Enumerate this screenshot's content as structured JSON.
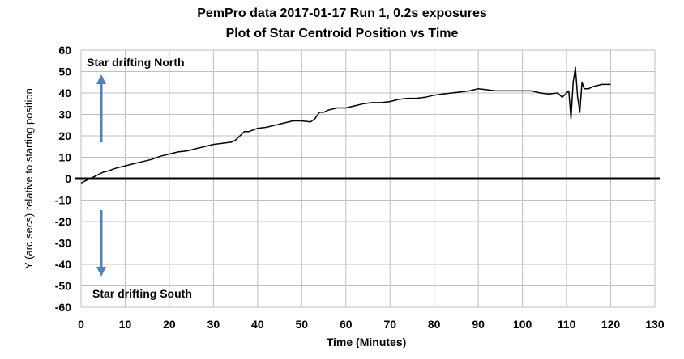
{
  "chart_data": {
    "type": "line",
    "title_line1": "PemPro data 2017-01-17  Run 1, 0.2s exposures",
    "title_line2": "Plot of Star Centroid Position vs Time",
    "xlabel": "Time (Minutes)",
    "ylabel": "Y (arc secs) relative to starting position",
    "xlim": [
      0,
      130
    ],
    "ylim": [
      -60,
      60
    ],
    "xticks": [
      0,
      10,
      20,
      30,
      40,
      50,
      60,
      70,
      80,
      90,
      100,
      110,
      120,
      130
    ],
    "yticks": [
      60,
      50,
      40,
      30,
      20,
      10,
      0,
      -10,
      -20,
      -30,
      -40,
      -50,
      -60
    ],
    "grid": true,
    "zero_line": true,
    "annotations": {
      "north": "Star drifting  North",
      "south": "Star  drifting  South"
    },
    "arrow_color": "#4f81bd",
    "line_color": "#000000",
    "grid_color": "#bfbfbf",
    "series": [
      {
        "x": [
          0,
          1,
          2,
          3,
          4,
          5,
          6,
          8,
          10,
          12,
          14,
          16,
          18,
          20,
          22,
          24,
          26,
          28,
          30,
          32,
          34,
          35,
          36,
          37,
          38,
          40,
          42,
          44,
          46,
          48,
          50,
          52,
          53,
          54,
          55,
          56,
          58,
          60,
          62,
          64,
          66,
          68,
          70,
          72,
          74,
          76,
          78,
          80,
          82,
          84,
          86,
          88,
          90,
          92,
          94,
          96,
          98,
          100,
          102,
          104,
          106,
          108,
          109,
          110,
          110.5,
          111,
          111.5,
          112,
          112.5,
          113,
          113.5,
          114,
          115,
          116,
          118,
          120
        ],
        "y": [
          -2,
          -1,
          0,
          1,
          2,
          3,
          3.5,
          5,
          6,
          7,
          8,
          9,
          10.5,
          11.5,
          12.5,
          13,
          14,
          15,
          16,
          16.5,
          17,
          18,
          20,
          22,
          22,
          23.5,
          24,
          25,
          26,
          27,
          27,
          26.5,
          28,
          31,
          31,
          32,
          33,
          33,
          34,
          35,
          35.5,
          35.5,
          36,
          37,
          37.5,
          37.5,
          38,
          39,
          39.5,
          40,
          40.5,
          41,
          42,
          41.5,
          41,
          41,
          41,
          41,
          41,
          40,
          39.5,
          40,
          38,
          40,
          41,
          28,
          45,
          52,
          38,
          31,
          45,
          42,
          42,
          43,
          44,
          44
        ]
      }
    ]
  }
}
